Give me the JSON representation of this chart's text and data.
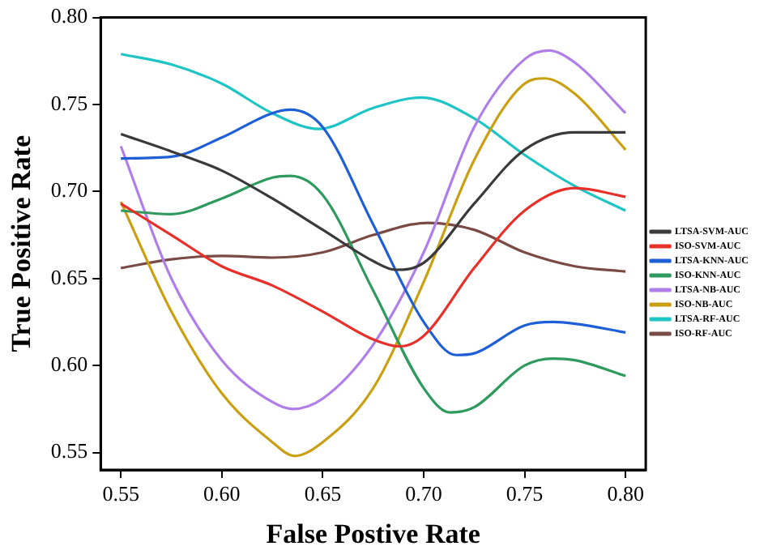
{
  "chart_data": {
    "type": "line",
    "xlabel": "False Postive Rate",
    "ylabel": "True Positive Rate",
    "xlim": [
      0.54,
      0.81
    ],
    "ylim": [
      0.54,
      0.8
    ],
    "xticks": [
      {
        "value": 0.55,
        "label": "0.55"
      },
      {
        "value": 0.6,
        "label": "0.60"
      },
      {
        "value": 0.65,
        "label": "0.65"
      },
      {
        "value": 0.7,
        "label": "0.70"
      },
      {
        "value": 0.75,
        "label": "0.75"
      },
      {
        "value": 0.8,
        "label": "0.80"
      }
    ],
    "yticks": [
      {
        "value": 0.55,
        "label": "0.55"
      },
      {
        "value": 0.6,
        "label": "0.60"
      },
      {
        "value": 0.65,
        "label": "0.65"
      },
      {
        "value": 0.7,
        "label": "0.70"
      },
      {
        "value": 0.75,
        "label": "0.75"
      },
      {
        "value": 0.8,
        "label": "0.80"
      }
    ],
    "grid": false,
    "legend": "right",
    "marker": "none",
    "line_style": "solid",
    "series": [
      {
        "name": "LTSA-SVM-AUC",
        "color": "#3a3a3a",
        "x": [
          0.55,
          0.575,
          0.6,
          0.625,
          0.65,
          0.675,
          0.686,
          0.7,
          0.725,
          0.75,
          0.775,
          0.8
        ],
        "values": [
          0.733,
          0.723,
          0.712,
          0.696,
          0.678,
          0.66,
          0.655,
          0.659,
          0.693,
          0.724,
          0.734,
          0.734
        ]
      },
      {
        "name": "ISO-SVM-AUC",
        "color": "#e8302a",
        "x": [
          0.55,
          0.575,
          0.6,
          0.625,
          0.65,
          0.675,
          0.688,
          0.7,
          0.725,
          0.75,
          0.775,
          0.8
        ],
        "values": [
          0.693,
          0.675,
          0.657,
          0.646,
          0.631,
          0.615,
          0.611,
          0.617,
          0.656,
          0.689,
          0.702,
          0.697
        ]
      },
      {
        "name": "LTSA-KNN-AUC",
        "color": "#1f5fd6",
        "x": [
          0.55,
          0.575,
          0.6,
          0.625,
          0.634,
          0.65,
          0.675,
          0.7,
          0.716,
          0.725,
          0.75,
          0.764,
          0.775,
          0.8
        ],
        "values": [
          0.719,
          0.72,
          0.731,
          0.745,
          0.747,
          0.737,
          0.681,
          0.625,
          0.606,
          0.607,
          0.623,
          0.625,
          0.624,
          0.619
        ]
      },
      {
        "name": "ISO-KNN-AUC",
        "color": "#2e9a5e",
        "x": [
          0.55,
          0.575,
          0.6,
          0.625,
          0.634,
          0.65,
          0.675,
          0.7,
          0.713,
          0.725,
          0.75,
          0.764,
          0.775,
          0.8
        ],
        "values": [
          0.689,
          0.687,
          0.696,
          0.708,
          0.709,
          0.698,
          0.643,
          0.587,
          0.573,
          0.576,
          0.6,
          0.604,
          0.603,
          0.594
        ]
      },
      {
        "name": "LTSA-NB-AUC",
        "color": "#b07ee8",
        "x": [
          0.55,
          0.575,
          0.6,
          0.625,
          0.635,
          0.65,
          0.675,
          0.7,
          0.725,
          0.75,
          0.762,
          0.775,
          0.8
        ],
        "values": [
          0.726,
          0.65,
          0.603,
          0.579,
          0.575,
          0.581,
          0.612,
          0.665,
          0.737,
          0.776,
          0.781,
          0.774,
          0.745
        ]
      },
      {
        "name": "ISO-NB-AUC",
        "color": "#c9a012",
        "x": [
          0.55,
          0.575,
          0.6,
          0.625,
          0.636,
          0.65,
          0.675,
          0.7,
          0.725,
          0.75,
          0.76,
          0.775,
          0.8
        ],
        "values": [
          0.694,
          0.631,
          0.584,
          0.556,
          0.548,
          0.556,
          0.587,
          0.648,
          0.718,
          0.762,
          0.765,
          0.756,
          0.724
        ]
      },
      {
        "name": "LTSA-RF-AUC",
        "color": "#1fc4c4",
        "x": [
          0.55,
          0.575,
          0.6,
          0.625,
          0.648,
          0.675,
          0.699,
          0.725,
          0.75,
          0.775,
          0.8
        ],
        "values": [
          0.779,
          0.773,
          0.762,
          0.745,
          0.736,
          0.748,
          0.754,
          0.742,
          0.721,
          0.703,
          0.689
        ]
      },
      {
        "name": "ISO-RF-AUC",
        "color": "#7a4a45",
        "x": [
          0.55,
          0.575,
          0.6,
          0.625,
          0.65,
          0.675,
          0.702,
          0.725,
          0.75,
          0.775,
          0.8
        ],
        "values": [
          0.656,
          0.661,
          0.663,
          0.662,
          0.665,
          0.675,
          0.682,
          0.678,
          0.665,
          0.657,
          0.654
        ]
      }
    ]
  }
}
